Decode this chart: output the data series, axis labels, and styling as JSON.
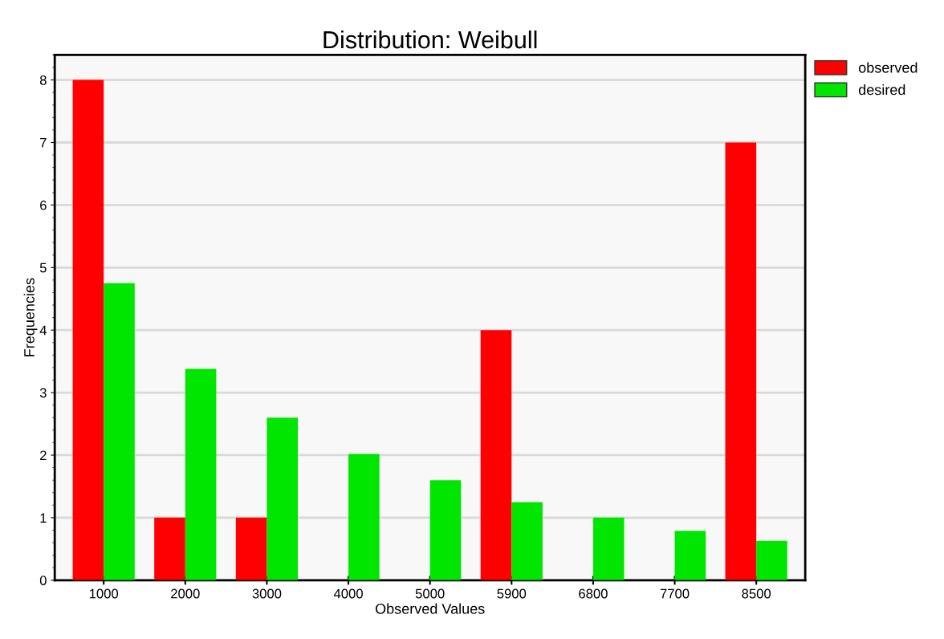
{
  "chart_data": {
    "type": "bar",
    "title": "Distribution: Weibull",
    "xlabel": "Observed Values",
    "ylabel": "Frequencies",
    "categories": [
      "1000",
      "2000",
      "3000",
      "4000",
      "5000",
      "5900",
      "6800",
      "7700",
      "8500"
    ],
    "series": [
      {
        "name": "observed",
        "color": "#ff0000",
        "values": [
          8,
          1,
          1,
          0,
          0,
          4,
          0,
          0,
          7
        ]
      },
      {
        "name": "desired",
        "color": "#00e600",
        "values": [
          4.75,
          3.38,
          2.6,
          2.02,
          1.6,
          1.25,
          1.0,
          0.79,
          0.63
        ]
      }
    ],
    "ylim": [
      0,
      8.4
    ],
    "yticks": [
      0,
      1,
      2,
      3,
      4,
      5,
      6,
      7,
      8
    ],
    "grid": "y",
    "legend": "top right"
  }
}
